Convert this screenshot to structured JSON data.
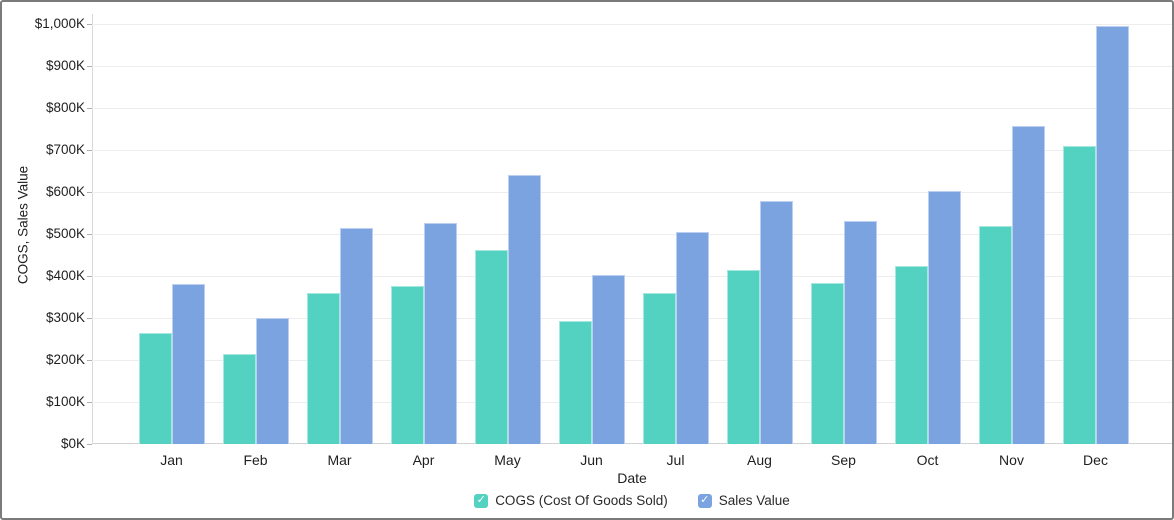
{
  "chart_data": {
    "type": "bar",
    "title": "",
    "xlabel": "Date",
    "ylabel": "COGS, Sales Value",
    "categories": [
      "Jan",
      "Feb",
      "Mar",
      "Apr",
      "May",
      "Jun",
      "Jul",
      "Aug",
      "Sep",
      "Oct",
      "Nov",
      "Dec"
    ],
    "series": [
      {
        "name": "COGS (Cost Of Goods Sold)",
        "color": "#53d1c1",
        "edge_color": "#a6e7de",
        "values": [
          265,
          215,
          360,
          375,
          462,
          293,
          360,
          415,
          383,
          424,
          520,
          710
        ]
      },
      {
        "name": "Sales Value",
        "color": "#7ba3e0",
        "edge_color": "#bccff0",
        "values": [
          380,
          300,
          515,
          525,
          640,
          402,
          505,
          578,
          530,
          602,
          758,
          995
        ]
      }
    ],
    "unit": "$K",
    "ylim": [
      0,
      1000
    ],
    "ytick_step": 100,
    "ytick_labels": [
      "$0K",
      "$100K",
      "$200K",
      "$300K",
      "$400K",
      "$500K",
      "$600K",
      "$700K",
      "$800K",
      "$900K",
      "$1,000K"
    ],
    "grid": true,
    "legend_position": "bottom",
    "legend_checkmark": "✓"
  }
}
